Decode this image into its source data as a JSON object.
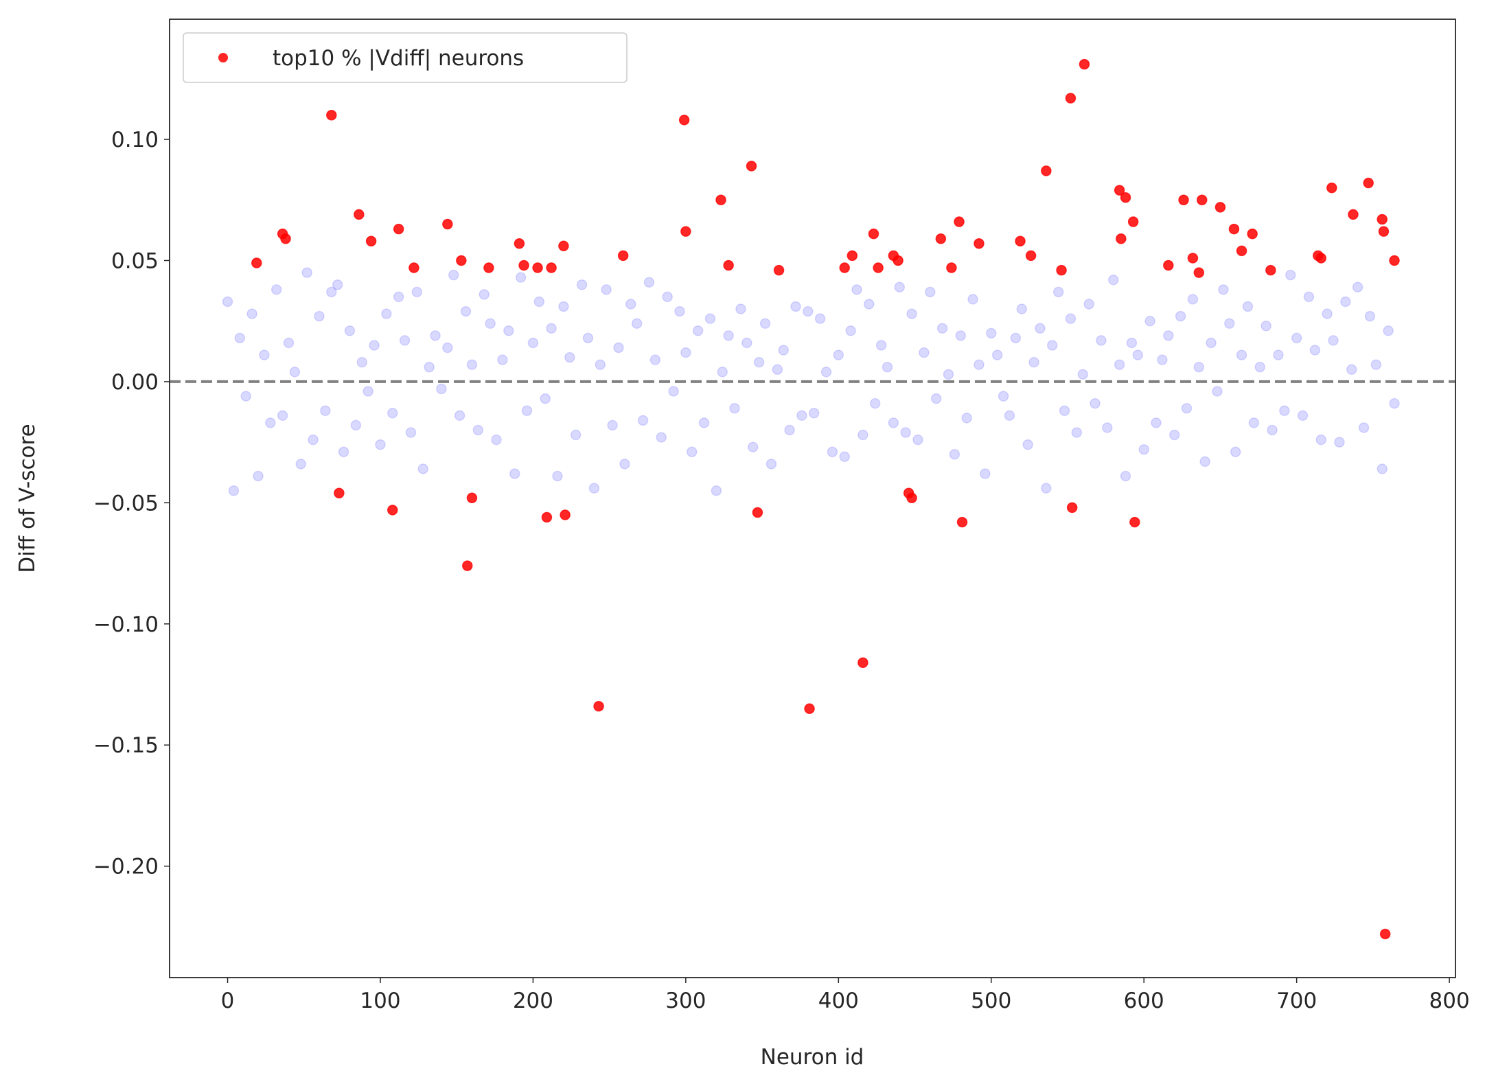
{
  "chart_data": {
    "type": "scatter",
    "xlabel": "Neuron id",
    "ylabel": "Diff of V-score",
    "xlim": [
      -38,
      804
    ],
    "ylim": [
      -0.246,
      0.1496
    ],
    "xticks": [
      0,
      100,
      200,
      300,
      400,
      500,
      600,
      700,
      800
    ],
    "yticks": [
      {
        "value": -0.2,
        "label": "−0.20"
      },
      {
        "value": -0.15,
        "label": "−0.15"
      },
      {
        "value": -0.1,
        "label": "−0.10"
      },
      {
        "value": -0.05,
        "label": "−0.05"
      },
      {
        "value": 0,
        "label": "0.00"
      },
      {
        "value": 0.05,
        "label": "0.05"
      },
      {
        "value": 0.1,
        "label": "0.10"
      }
    ],
    "hline": {
      "value": 0,
      "color": "#808080",
      "style": "dashed"
    },
    "legend": "upper left",
    "series": [
      {
        "color": "#0000ff",
        "alpha": 0.15,
        "x": [
          0,
          4,
          8,
          12,
          16,
          20,
          24,
          28,
          32,
          36,
          40,
          44,
          48,
          52,
          56,
          60,
          64,
          68,
          72,
          76,
          80,
          84,
          88,
          92,
          96,
          100,
          104,
          108,
          112,
          116,
          120,
          124,
          128,
          132,
          136,
          140,
          144,
          148,
          152,
          156,
          160,
          164,
          168,
          172,
          176,
          180,
          184,
          188,
          192,
          196,
          200,
          204,
          208,
          212,
          216,
          220,
          224,
          228,
          232,
          236,
          240,
          244,
          248,
          252,
          256,
          260,
          264,
          268,
          272,
          276,
          280,
          284,
          288,
          292,
          296,
          300,
          304,
          308,
          312,
          316,
          320,
          324,
          328,
          332,
          336,
          340,
          344,
          348,
          352,
          356,
          360,
          364,
          368,
          372,
          376,
          380,
          384,
          388,
          392,
          396,
          400,
          404,
          408,
          412,
          416,
          420,
          424,
          428,
          432,
          436,
          440,
          444,
          448,
          452,
          456,
          460,
          464,
          468,
          472,
          476,
          480,
          484,
          488,
          492,
          496,
          500,
          504,
          508,
          512,
          516,
          520,
          524,
          528,
          532,
          536,
          540,
          544,
          548,
          552,
          556,
          560,
          564,
          568,
          572,
          576,
          580,
          584,
          588,
          592,
          596,
          600,
          604,
          608,
          612,
          616,
          620,
          624,
          628,
          632,
          636,
          640,
          644,
          648,
          652,
          656,
          660,
          664,
          668,
          672,
          676,
          680,
          684,
          688,
          692,
          696,
          700,
          704,
          708,
          712,
          716,
          720,
          724,
          728,
          732,
          736,
          740,
          744,
          748,
          752,
          756,
          760,
          764
        ],
        "values": [
          0.033,
          -0.045,
          0.018,
          -0.006,
          0.028,
          -0.039,
          0.011,
          -0.017,
          0.038,
          -0.014,
          0.016,
          0.004,
          -0.034,
          0.045,
          -0.024,
          0.027,
          -0.012,
          0.037,
          0.04,
          -0.029,
          0.021,
          -0.018,
          0.008,
          -0.004,
          0.015,
          -0.026,
          0.028,
          -0.013,
          0.035,
          0.017,
          -0.021,
          0.037,
          -0.036,
          0.006,
          0.019,
          -0.003,
          0.014,
          0.044,
          -0.014,
          0.029,
          0.007,
          -0.02,
          0.036,
          0.024,
          -0.024,
          0.009,
          0.021,
          -0.038,
          0.043,
          -0.012,
          0.016,
          0.033,
          -0.007,
          0.022,
          -0.039,
          0.031,
          0.01,
          -0.022,
          0.04,
          0.018,
          -0.044,
          0.007,
          0.038,
          -0.018,
          0.014,
          -0.034,
          0.032,
          0.024,
          -0.016,
          0.041,
          0.009,
          -0.023,
          0.035,
          -0.004,
          0.029,
          0.012,
          -0.029,
          0.021,
          -0.017,
          0.026,
          -0.045,
          0.004,
          0.019,
          -0.011,
          0.03,
          0.016,
          -0.027,
          0.008,
          0.024,
          -0.034,
          0.005,
          0.013,
          -0.02,
          0.031,
          -0.014,
          0.029,
          -0.013,
          0.026,
          0.004,
          -0.029,
          0.011,
          -0.031,
          0.021,
          0.038,
          -0.022,
          0.032,
          -0.009,
          0.015,
          0.006,
          -0.017,
          0.039,
          -0.021,
          0.028,
          -0.024,
          0.012,
          0.037,
          -0.007,
          0.022,
          0.003,
          -0.03,
          0.019,
          -0.015,
          0.034,
          0.007,
          -0.038,
          0.02,
          0.011,
          -0.006,
          -0.014,
          0.018,
          0.03,
          -0.026,
          0.008,
          0.022,
          -0.044,
          0.015,
          0.037,
          -0.012,
          0.026,
          -0.021,
          0.003,
          0.032,
          -0.009,
          0.017,
          -0.019,
          0.042,
          0.007,
          -0.039,
          0.016,
          0.011,
          -0.028,
          0.025,
          -0.017,
          0.009,
          0.019,
          -0.022,
          0.027,
          -0.011,
          0.034,
          0.006,
          -0.033,
          0.016,
          -0.004,
          0.038,
          0.024,
          -0.029,
          0.011,
          0.031,
          -0.017,
          0.006,
          0.023,
          -0.02,
          0.011,
          -0.012,
          0.044,
          0.018,
          -0.014,
          0.035,
          0.013,
          -0.024,
          0.028,
          0.017,
          -0.025,
          0.033,
          0.005,
          0.039,
          -0.019,
          0.027,
          0.007,
          -0.036,
          0.021,
          -0.009
        ]
      },
      {
        "name": "top10 % |Vdiff| neurons",
        "color": "#ff0000",
        "alpha": 0.85,
        "x": [
          19,
          36,
          38,
          68,
          73,
          86,
          94,
          108,
          112,
          122,
          144,
          153,
          157,
          160,
          171,
          191,
          194,
          203,
          209,
          212,
          220,
          221,
          243,
          259,
          299,
          300,
          323,
          328,
          343,
          347,
          361,
          381,
          404,
          409,
          416,
          423,
          426,
          436,
          439,
          446,
          448,
          467,
          474,
          479,
          481,
          492,
          519,
          526,
          536,
          546,
          552,
          553,
          561,
          584,
          585,
          588,
          593,
          594,
          616,
          626,
          632,
          636,
          638,
          650,
          659,
          664,
          671,
          683,
          714,
          716,
          723,
          737,
          747,
          756,
          757,
          758,
          764
        ],
        "values": [
          0.049,
          0.061,
          0.059,
          0.11,
          -0.046,
          0.069,
          0.058,
          -0.053,
          0.063,
          0.047,
          0.065,
          0.05,
          -0.076,
          -0.048,
          0.047,
          0.057,
          0.048,
          0.047,
          -0.056,
          0.047,
          0.056,
          -0.055,
          -0.134,
          0.052,
          0.108,
          0.062,
          0.075,
          0.048,
          0.089,
          -0.054,
          0.046,
          -0.135,
          0.047,
          0.052,
          -0.116,
          0.061,
          0.047,
          0.052,
          0.05,
          -0.046,
          -0.048,
          0.059,
          0.047,
          0.066,
          -0.058,
          0.057,
          0.058,
          0.052,
          0.087,
          0.046,
          0.117,
          -0.052,
          0.131,
          0.079,
          0.059,
          0.076,
          0.066,
          -0.058,
          0.048,
          0.075,
          0.051,
          0.045,
          0.075,
          0.072,
          0.063,
          0.054,
          0.061,
          0.046,
          0.052,
          0.051,
          0.08,
          0.069,
          0.082,
          0.067,
          0.062,
          -0.228,
          0.05
        ]
      }
    ]
  }
}
